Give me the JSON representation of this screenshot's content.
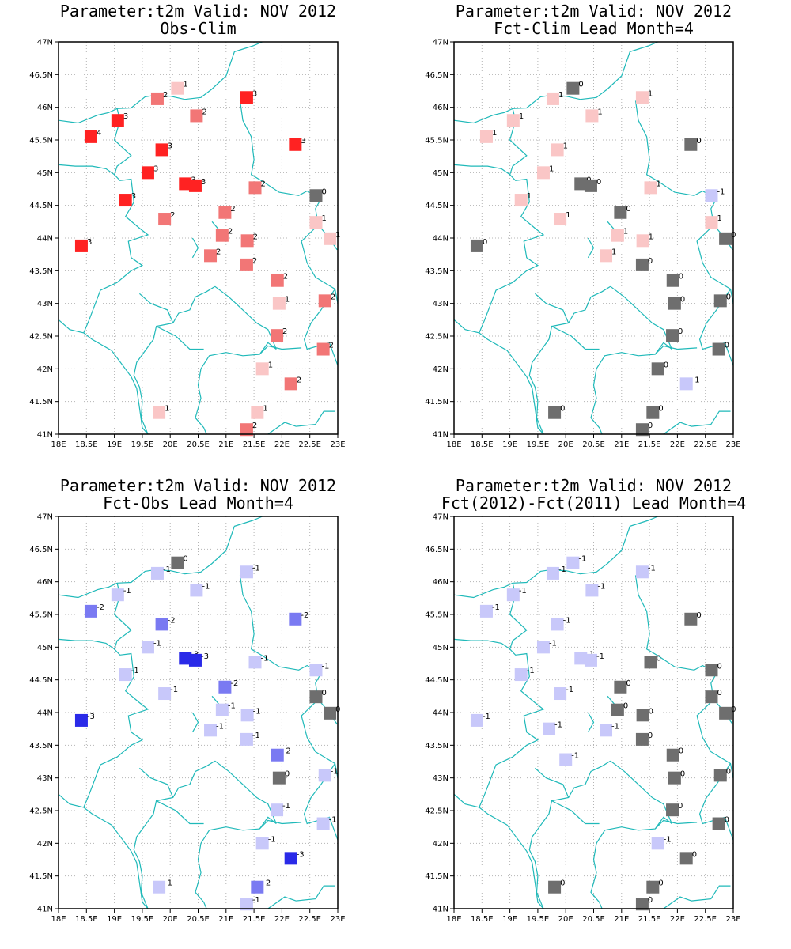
{
  "colors": {
    "frame": "#000000",
    "grid": "#b4b4b4",
    "border": "#1fb9b9",
    "red3": "#ff2222",
    "red2": "#f27676",
    "red1": "#fac6c6",
    "zero": "#6e6e6e",
    "blue1": "#c8c8fa",
    "blue2": "#7a7af2",
    "blue3": "#2a2ae8"
  },
  "map_extent": {
    "lon_min": 18,
    "lon_max": 23,
    "lat_min": 41,
    "lat_max": 47
  },
  "lon_labels": [
    "18E",
    "18.5E",
    "19E",
    "19.5E",
    "20E",
    "20.5E",
    "21E",
    "21.5E",
    "22E",
    "22.5E",
    "23E"
  ],
  "lat_labels": [
    "41N",
    "41.5N",
    "42N",
    "42.5N",
    "43N",
    "43.5N",
    "44N",
    "44.5N",
    "45N",
    "45.5N",
    "46N",
    "46.5N",
    "47N"
  ],
  "panels": [
    {
      "title1": "Parameter:t2m Valid: NOV 2012",
      "title2": "Obs-Clim",
      "stations": [
        {
          "lon": 20.13,
          "lat": 46.29,
          "v": 1
        },
        {
          "lon": 19.77,
          "lat": 46.13,
          "v": 2
        },
        {
          "lon": 21.37,
          "lat": 46.15,
          "v": 3
        },
        {
          "lon": 19.06,
          "lat": 45.8,
          "v": 3
        },
        {
          "lon": 20.47,
          "lat": 45.87,
          "v": 2
        },
        {
          "lon": 18.58,
          "lat": 45.55,
          "v": 4
        },
        {
          "lon": 19.85,
          "lat": 45.35,
          "v": 3
        },
        {
          "lon": 22.24,
          "lat": 45.43,
          "v": 3
        },
        {
          "lon": 19.6,
          "lat": 45.0,
          "v": 3
        },
        {
          "lon": 20.27,
          "lat": 44.83,
          "v": 3
        },
        {
          "lon": 20.45,
          "lat": 44.8,
          "v": 3
        },
        {
          "lon": 21.52,
          "lat": 44.77,
          "v": 2
        },
        {
          "lon": 22.61,
          "lat": 44.65,
          "v": 0
        },
        {
          "lon": 19.2,
          "lat": 44.58,
          "v": 3
        },
        {
          "lon": 19.9,
          "lat": 44.29,
          "v": 2
        },
        {
          "lon": 20.98,
          "lat": 44.39,
          "v": 2
        },
        {
          "lon": 22.61,
          "lat": 44.24,
          "v": 1
        },
        {
          "lon": 20.93,
          "lat": 44.04,
          "v": 2
        },
        {
          "lon": 21.38,
          "lat": 43.96,
          "v": 2
        },
        {
          "lon": 22.86,
          "lat": 43.99,
          "v": 1
        },
        {
          "lon": 18.41,
          "lat": 43.88,
          "v": 3
        },
        {
          "lon": 20.72,
          "lat": 43.73,
          "v": 2
        },
        {
          "lon": 21.37,
          "lat": 43.59,
          "v": 2
        },
        {
          "lon": 21.92,
          "lat": 43.35,
          "v": 2
        },
        {
          "lon": 21.95,
          "lat": 43.0,
          "v": 1
        },
        {
          "lon": 22.77,
          "lat": 43.04,
          "v": 2
        },
        {
          "lon": 21.91,
          "lat": 42.51,
          "v": 2
        },
        {
          "lon": 22.74,
          "lat": 42.3,
          "v": 2
        },
        {
          "lon": 21.65,
          "lat": 42.0,
          "v": 1
        },
        {
          "lon": 22.16,
          "lat": 41.77,
          "v": 2
        },
        {
          "lon": 19.8,
          "lat": 41.33,
          "v": 1
        },
        {
          "lon": 21.56,
          "lat": 41.33,
          "v": 1
        },
        {
          "lon": 21.37,
          "lat": 41.07,
          "v": 2
        }
      ]
    },
    {
      "title1": "Parameter:t2m Valid: NOV 2012",
      "title2": "Fct-Clim Lead Month=4",
      "stations": [
        {
          "lon": 20.13,
          "lat": 46.29,
          "v": 0
        },
        {
          "lon": 19.77,
          "lat": 46.13,
          "v": 1
        },
        {
          "lon": 21.37,
          "lat": 46.15,
          "v": 1
        },
        {
          "lon": 19.06,
          "lat": 45.8,
          "v": 1
        },
        {
          "lon": 20.47,
          "lat": 45.87,
          "v": 1
        },
        {
          "lon": 18.58,
          "lat": 45.55,
          "v": 1
        },
        {
          "lon": 19.85,
          "lat": 45.35,
          "v": 1
        },
        {
          "lon": 22.24,
          "lat": 45.43,
          "v": 0
        },
        {
          "lon": 19.6,
          "lat": 45.0,
          "v": 1
        },
        {
          "lon": 20.27,
          "lat": 44.83,
          "v": 0
        },
        {
          "lon": 20.45,
          "lat": 44.8,
          "v": 0
        },
        {
          "lon": 21.52,
          "lat": 44.77,
          "v": 1
        },
        {
          "lon": 22.61,
          "lat": 44.65,
          "v": -1
        },
        {
          "lon": 19.2,
          "lat": 44.58,
          "v": 1
        },
        {
          "lon": 19.9,
          "lat": 44.29,
          "v": 1
        },
        {
          "lon": 20.98,
          "lat": 44.39,
          "v": 0
        },
        {
          "lon": 22.61,
          "lat": 44.24,
          "v": 1
        },
        {
          "lon": 20.93,
          "lat": 44.04,
          "v": 1
        },
        {
          "lon": 21.38,
          "lat": 43.96,
          "v": 1
        },
        {
          "lon": 22.86,
          "lat": 43.99,
          "v": 0
        },
        {
          "lon": 18.41,
          "lat": 43.88,
          "v": 0
        },
        {
          "lon": 20.72,
          "lat": 43.73,
          "v": 1
        },
        {
          "lon": 21.37,
          "lat": 43.59,
          "v": 0
        },
        {
          "lon": 21.92,
          "lat": 43.35,
          "v": 0
        },
        {
          "lon": 21.95,
          "lat": 43.0,
          "v": 0
        },
        {
          "lon": 22.77,
          "lat": 43.04,
          "v": 0
        },
        {
          "lon": 21.91,
          "lat": 42.51,
          "v": 0
        },
        {
          "lon": 22.74,
          "lat": 42.3,
          "v": 0
        },
        {
          "lon": 21.65,
          "lat": 42.0,
          "v": 0
        },
        {
          "lon": 22.16,
          "lat": 41.77,
          "v": -1
        },
        {
          "lon": 19.8,
          "lat": 41.33,
          "v": 0
        },
        {
          "lon": 21.56,
          "lat": 41.33,
          "v": 0
        },
        {
          "lon": 21.37,
          "lat": 41.07,
          "v": 0
        }
      ]
    },
    {
      "title1": "Parameter:t2m Valid: NOV 2012",
      "title2": "Fct-Obs Lead Month=4",
      "stations": [
        {
          "lon": 20.13,
          "lat": 46.29,
          "v": 0
        },
        {
          "lon": 19.77,
          "lat": 46.13,
          "v": -1
        },
        {
          "lon": 21.37,
          "lat": 46.15,
          "v": -1
        },
        {
          "lon": 19.06,
          "lat": 45.8,
          "v": -1
        },
        {
          "lon": 20.47,
          "lat": 45.87,
          "v": -1
        },
        {
          "lon": 18.58,
          "lat": 45.55,
          "v": -2
        },
        {
          "lon": 19.85,
          "lat": 45.35,
          "v": -2
        },
        {
          "lon": 22.24,
          "lat": 45.43,
          "v": -2
        },
        {
          "lon": 19.6,
          "lat": 45.0,
          "v": -1
        },
        {
          "lon": 20.27,
          "lat": 44.83,
          "v": -3
        },
        {
          "lon": 20.45,
          "lat": 44.8,
          "v": -3
        },
        {
          "lon": 21.52,
          "lat": 44.77,
          "v": -1
        },
        {
          "lon": 22.61,
          "lat": 44.65,
          "v": -1
        },
        {
          "lon": 19.2,
          "lat": 44.58,
          "v": -1
        },
        {
          "lon": 19.9,
          "lat": 44.29,
          "v": -1
        },
        {
          "lon": 20.98,
          "lat": 44.39,
          "v": -2
        },
        {
          "lon": 22.61,
          "lat": 44.24,
          "v": 0
        },
        {
          "lon": 20.93,
          "lat": 44.04,
          "v": -1
        },
        {
          "lon": 21.38,
          "lat": 43.96,
          "v": -1
        },
        {
          "lon": 22.86,
          "lat": 43.99,
          "v": 0
        },
        {
          "lon": 18.41,
          "lat": 43.88,
          "v": -3
        },
        {
          "lon": 20.72,
          "lat": 43.73,
          "v": -1
        },
        {
          "lon": 21.37,
          "lat": 43.59,
          "v": -1
        },
        {
          "lon": 21.92,
          "lat": 43.35,
          "v": -2
        },
        {
          "lon": 21.95,
          "lat": 43.0,
          "v": 0
        },
        {
          "lon": 22.77,
          "lat": 43.04,
          "v": -1
        },
        {
          "lon": 21.91,
          "lat": 42.51,
          "v": -1
        },
        {
          "lon": 22.74,
          "lat": 42.3,
          "v": -1
        },
        {
          "lon": 21.65,
          "lat": 42.0,
          "v": -1
        },
        {
          "lon": 22.16,
          "lat": 41.77,
          "v": -3
        },
        {
          "lon": 19.8,
          "lat": 41.33,
          "v": -1
        },
        {
          "lon": 21.56,
          "lat": 41.33,
          "v": -2
        },
        {
          "lon": 21.37,
          "lat": 41.07,
          "v": -1
        }
      ]
    },
    {
      "title1": "Parameter:t2m Valid: NOV 2012",
      "title2": "Fct(2012)-Fct(2011) Lead Month=4",
      "stations": [
        {
          "lon": 20.13,
          "lat": 46.29,
          "v": -1
        },
        {
          "lon": 19.77,
          "lat": 46.13,
          "v": -1
        },
        {
          "lon": 21.37,
          "lat": 46.15,
          "v": -1
        },
        {
          "lon": 19.06,
          "lat": 45.8,
          "v": -1
        },
        {
          "lon": 20.47,
          "lat": 45.87,
          "v": -1
        },
        {
          "lon": 18.58,
          "lat": 45.55,
          "v": -1
        },
        {
          "lon": 19.85,
          "lat": 45.35,
          "v": -1
        },
        {
          "lon": 22.24,
          "lat": 45.43,
          "v": 0
        },
        {
          "lon": 19.6,
          "lat": 45.0,
          "v": -1
        },
        {
          "lon": 20.27,
          "lat": 44.83,
          "v": -1
        },
        {
          "lon": 20.45,
          "lat": 44.8,
          "v": -1
        },
        {
          "lon": 21.52,
          "lat": 44.77,
          "v": 0
        },
        {
          "lon": 22.61,
          "lat": 44.65,
          "v": 0
        },
        {
          "lon": 19.2,
          "lat": 44.58,
          "v": -1
        },
        {
          "lon": 19.9,
          "lat": 44.29,
          "v": -1
        },
        {
          "lon": 20.98,
          "lat": 44.39,
          "v": 0
        },
        {
          "lon": 22.61,
          "lat": 44.24,
          "v": 0
        },
        {
          "lon": 20.93,
          "lat": 44.04,
          "v": 0
        },
        {
          "lon": 21.38,
          "lat": 43.96,
          "v": 0
        },
        {
          "lon": 22.86,
          "lat": 43.99,
          "v": 0
        },
        {
          "lon": 18.41,
          "lat": 43.88,
          "v": -1
        },
        {
          "lon": 19.7,
          "lat": 43.75,
          "v": -1
        },
        {
          "lon": 20.72,
          "lat": 43.73,
          "v": -1
        },
        {
          "lon": 21.37,
          "lat": 43.59,
          "v": 0
        },
        {
          "lon": 21.92,
          "lat": 43.35,
          "v": 0
        },
        {
          "lon": 20.0,
          "lat": 43.28,
          "v": -1
        },
        {
          "lon": 21.95,
          "lat": 43.0,
          "v": 0
        },
        {
          "lon": 22.77,
          "lat": 43.04,
          "v": 0
        },
        {
          "lon": 21.91,
          "lat": 42.51,
          "v": 0
        },
        {
          "lon": 22.74,
          "lat": 42.3,
          "v": 0
        },
        {
          "lon": 21.65,
          "lat": 42.0,
          "v": -1
        },
        {
          "lon": 22.16,
          "lat": 41.77,
          "v": 0
        },
        {
          "lon": 19.8,
          "lat": 41.33,
          "v": 0
        },
        {
          "lon": 21.56,
          "lat": 41.33,
          "v": 0
        },
        {
          "lon": 21.37,
          "lat": 41.07,
          "v": 0
        }
      ]
    }
  ]
}
